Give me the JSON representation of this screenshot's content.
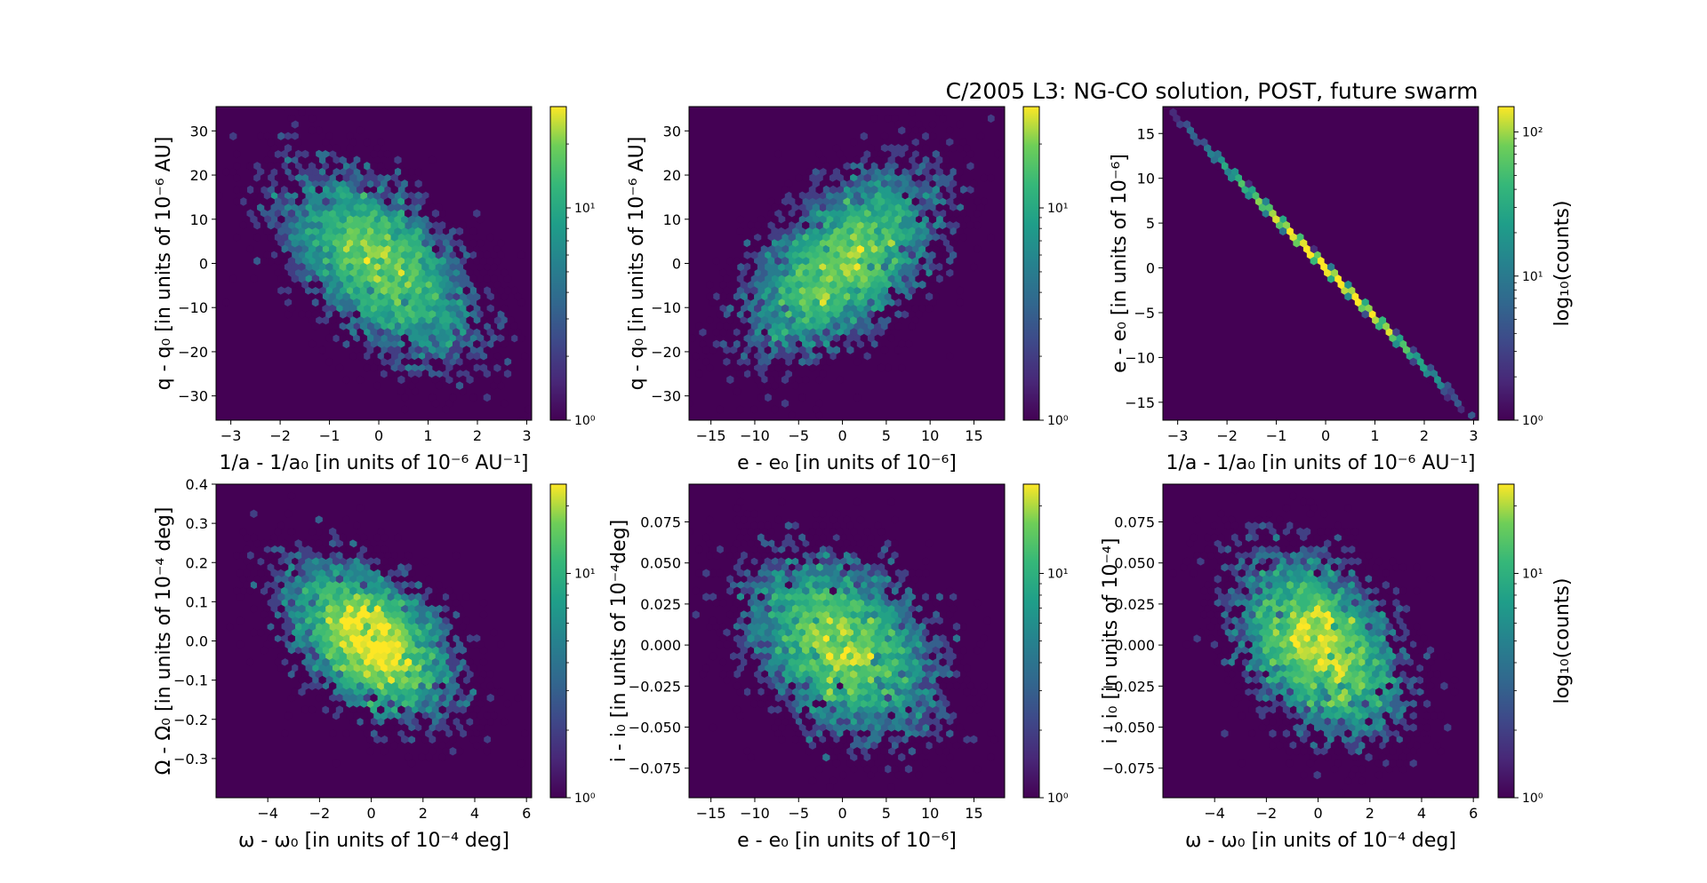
{
  "title": "C/2005 L3: NG-CO solution, POST, future swarm",
  "chart_data": [
    {
      "type": "heatmap",
      "subtype": "hexbin",
      "xlabel": "1/a - 1/a₀ [in units of 10⁻⁶ AU⁻¹]",
      "ylabel": "q - q₀ [in units of 10⁻⁶ AU]",
      "xlim": [
        -3.3,
        3.1
      ],
      "ylim": [
        -35.5,
        35.5
      ],
      "xticks": [
        "−3",
        "−2",
        "−1",
        "0",
        "1",
        "2",
        "3"
      ],
      "xtick_values": [
        -3,
        -2,
        -1,
        0,
        1,
        2,
        3
      ],
      "yticks": [
        "−30",
        "−20",
        "−10",
        "0",
        "10",
        "20",
        "30"
      ],
      "ytick_values": [
        -30,
        -20,
        -10,
        0,
        10,
        20,
        30
      ],
      "correlation": -0.55,
      "sx": 1.0,
      "sy": 10.5,
      "colorbar": {
        "scale": "log",
        "range": [
          1,
          30
        ],
        "ticks": [
          "10⁰",
          "10¹"
        ],
        "tick_values": [
          1,
          10
        ],
        "label": ""
      }
    },
    {
      "type": "heatmap",
      "subtype": "hexbin",
      "xlabel": "e - e₀ [in units of 10⁻⁶]",
      "ylabel": "q - q₀ [in units of 10⁻⁶ AU]",
      "xlim": [
        -17.5,
        18.5
      ],
      "ylim": [
        -35.5,
        35.5
      ],
      "xticks": [
        "−15",
        "−10",
        "−5",
        "0",
        "5",
        "10",
        "15"
      ],
      "xtick_values": [
        -15,
        -10,
        -5,
        0,
        5,
        10,
        15
      ],
      "yticks": [
        "−30",
        "−20",
        "−10",
        "0",
        "10",
        "20",
        "30"
      ],
      "ytick_values": [
        -30,
        -20,
        -10,
        0,
        10,
        20,
        30
      ],
      "correlation": 0.55,
      "sx": 5.5,
      "sy": 10.5,
      "colorbar": {
        "scale": "log",
        "range": [
          1,
          30
        ],
        "ticks": [
          "10⁰",
          "10¹"
        ],
        "tick_values": [
          1,
          10
        ],
        "label": ""
      }
    },
    {
      "type": "heatmap",
      "subtype": "hexbin",
      "xlabel": "1/a - 1/a₀ [in units of 10⁻⁶ AU⁻¹]",
      "ylabel": "e - e₀ [in units of 10⁻⁶]",
      "xlim": [
        -3.3,
        3.1
      ],
      "ylim": [
        -17,
        18
      ],
      "xticks": [
        "−3",
        "−2",
        "−1",
        "0",
        "1",
        "2",
        "3"
      ],
      "xtick_values": [
        -3,
        -2,
        -1,
        0,
        1,
        2,
        3
      ],
      "yticks": [
        "−15",
        "−10",
        "−5",
        "0",
        "5",
        "10",
        "15"
      ],
      "ytick_values": [
        -15,
        -10,
        -5,
        0,
        5,
        10,
        15
      ],
      "correlation": -1.0,
      "sx": 1.0,
      "sy": 5.5,
      "line_slope": -5.55,
      "colorbar": {
        "scale": "log",
        "range": [
          1,
          150
        ],
        "ticks": [
          "10⁰",
          "10¹",
          "10²"
        ],
        "tick_values": [
          1,
          10,
          100
        ],
        "label": "log₁₀(counts)"
      }
    },
    {
      "type": "heatmap",
      "subtype": "hexbin",
      "xlabel": "ω - ω₀ [in units of 10⁻⁴ deg]",
      "ylabel": "Ω - Ω₀ [in units of 10⁻⁴ deg]",
      "xlim": [
        -6,
        6.2
      ],
      "ylim": [
        -0.4,
        0.4
      ],
      "xticks": [
        "−4",
        "−2",
        "0",
        "2",
        "4",
        "6"
      ],
      "xtick_values": [
        -4,
        -2,
        0,
        2,
        4,
        6
      ],
      "yticks": [
        "−0.3",
        "−0.2",
        "−0.1",
        "0.0",
        "0.1",
        "0.2",
        "0.3",
        "0.4"
      ],
      "ytick_values": [
        -0.3,
        -0.2,
        -0.1,
        0.0,
        0.1,
        0.2,
        0.3,
        0.4
      ],
      "correlation": -0.45,
      "sx": 1.6,
      "sy": 0.1,
      "colorbar": {
        "scale": "log",
        "range": [
          1,
          25
        ],
        "ticks": [
          "10⁰",
          "10¹"
        ],
        "tick_values": [
          1,
          10
        ],
        "label": ""
      }
    },
    {
      "type": "heatmap",
      "subtype": "hexbin",
      "xlabel": "e - e₀ [in units of 10⁻⁶]",
      "ylabel": "i - i₀ [in units of 10⁻⁴deg]",
      "xlim": [
        -17.5,
        18.5
      ],
      "ylim": [
        -0.093,
        0.098
      ],
      "xticks": [
        "−15",
        "−10",
        "−5",
        "0",
        "5",
        "10",
        "15"
      ],
      "xtick_values": [
        -15,
        -10,
        -5,
        0,
        5,
        10,
        15
      ],
      "yticks": [
        "−0.075",
        "−0.050",
        "−0.025",
        "0.000",
        "0.025",
        "0.050",
        "0.075"
      ],
      "ytick_values": [
        -0.075,
        -0.05,
        -0.025,
        0.0,
        0.025,
        0.05,
        0.075
      ],
      "correlation": -0.35,
      "sx": 5.5,
      "sy": 0.028,
      "colorbar": {
        "scale": "log",
        "range": [
          1,
          25
        ],
        "ticks": [
          "10⁰",
          "10¹"
        ],
        "tick_values": [
          1,
          10
        ],
        "label": ""
      }
    },
    {
      "type": "heatmap",
      "subtype": "hexbin",
      "xlabel": "ω - ω₀ [in units of 10⁻⁴ deg]",
      "ylabel": "i - i₀ [in units of 10⁻⁴]",
      "xlim": [
        -6,
        6.2
      ],
      "ylim": [
        -0.093,
        0.098
      ],
      "xticks": [
        "−4",
        "−2",
        "0",
        "2",
        "4",
        "6"
      ],
      "xtick_values": [
        -4,
        -2,
        0,
        2,
        4,
        6
      ],
      "yticks": [
        "−0.075",
        "−0.050",
        "−0.025",
        "0.000",
        "0.025",
        "0.050",
        "0.075"
      ],
      "ytick_values": [
        -0.075,
        -0.05,
        -0.025,
        0.0,
        0.025,
        0.05,
        0.075
      ],
      "correlation": -0.4,
      "sx": 1.6,
      "sy": 0.028,
      "colorbar": {
        "scale": "log",
        "range": [
          1,
          25
        ],
        "ticks": [
          "10⁰",
          "10¹"
        ],
        "tick_values": [
          1,
          10
        ],
        "label": "log₁₀(counts)"
      }
    }
  ]
}
